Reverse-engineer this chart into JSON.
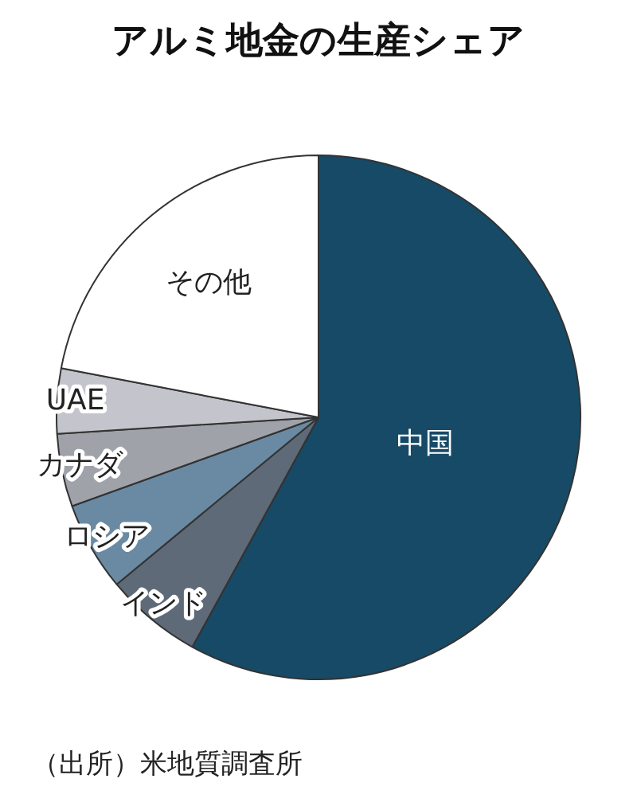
{
  "chart_data": {
    "type": "pie",
    "title": "アルミ地金の生産シェア",
    "categories": [
      "中国",
      "インド",
      "ロシア",
      "カナダ",
      "UAE",
      "その他"
    ],
    "values": [
      58,
      6,
      5.5,
      4.5,
      4,
      22
    ],
    "colors": [
      "#174a66",
      "#5f6a78",
      "#6a8aa3",
      "#a0a2aa",
      "#c4c4cc",
      "#ffffff"
    ],
    "annotations": [
      "（出所）米地質調査所"
    ],
    "legend": false
  }
}
